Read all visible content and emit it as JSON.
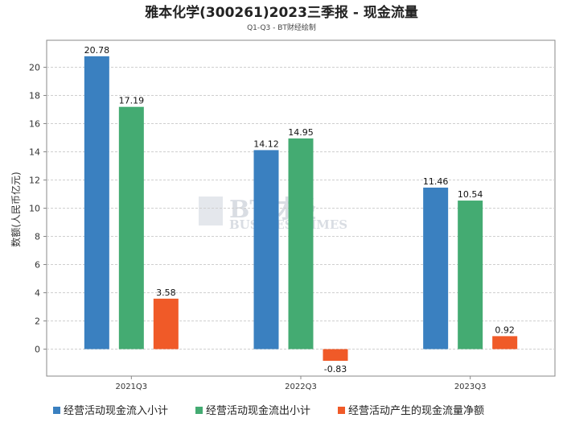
{
  "chart_data": {
    "type": "bar",
    "title": "雅本化学(300261)2023三季报 - 现金流量",
    "subtitle": "Q1-Q3 - BT财经绘制",
    "ylabel": "数额(人民币亿元)",
    "xlabel": "",
    "categories": [
      "2021Q3",
      "2022Q3",
      "2023Q3"
    ],
    "ylim": [
      -2,
      22
    ],
    "yticks": [
      0,
      2,
      4,
      6,
      8,
      10,
      12,
      14,
      16,
      18,
      20
    ],
    "series": [
      {
        "name": "经营活动现金流入小计",
        "color": "#3a80c0",
        "values": [
          20.78,
          14.12,
          11.46
        ],
        "labels": [
          "20.78",
          "14.12",
          "11.46"
        ]
      },
      {
        "name": "经营活动现金流出小计",
        "color": "#44ab72",
        "values": [
          17.19,
          14.95,
          10.54
        ],
        "labels": [
          "17.19",
          "14.95",
          "10.54"
        ]
      },
      {
        "name": "经营活动产生的现金流量净额",
        "color": "#f05a28",
        "values": [
          3.58,
          -0.83,
          0.92
        ],
        "labels": [
          "3.58",
          "-0.83",
          "0.92"
        ]
      }
    ],
    "grid": true,
    "legend_position": "bottom",
    "watermark": {
      "main": "BT财经",
      "sub": "BUSINESSTIMES"
    }
  }
}
